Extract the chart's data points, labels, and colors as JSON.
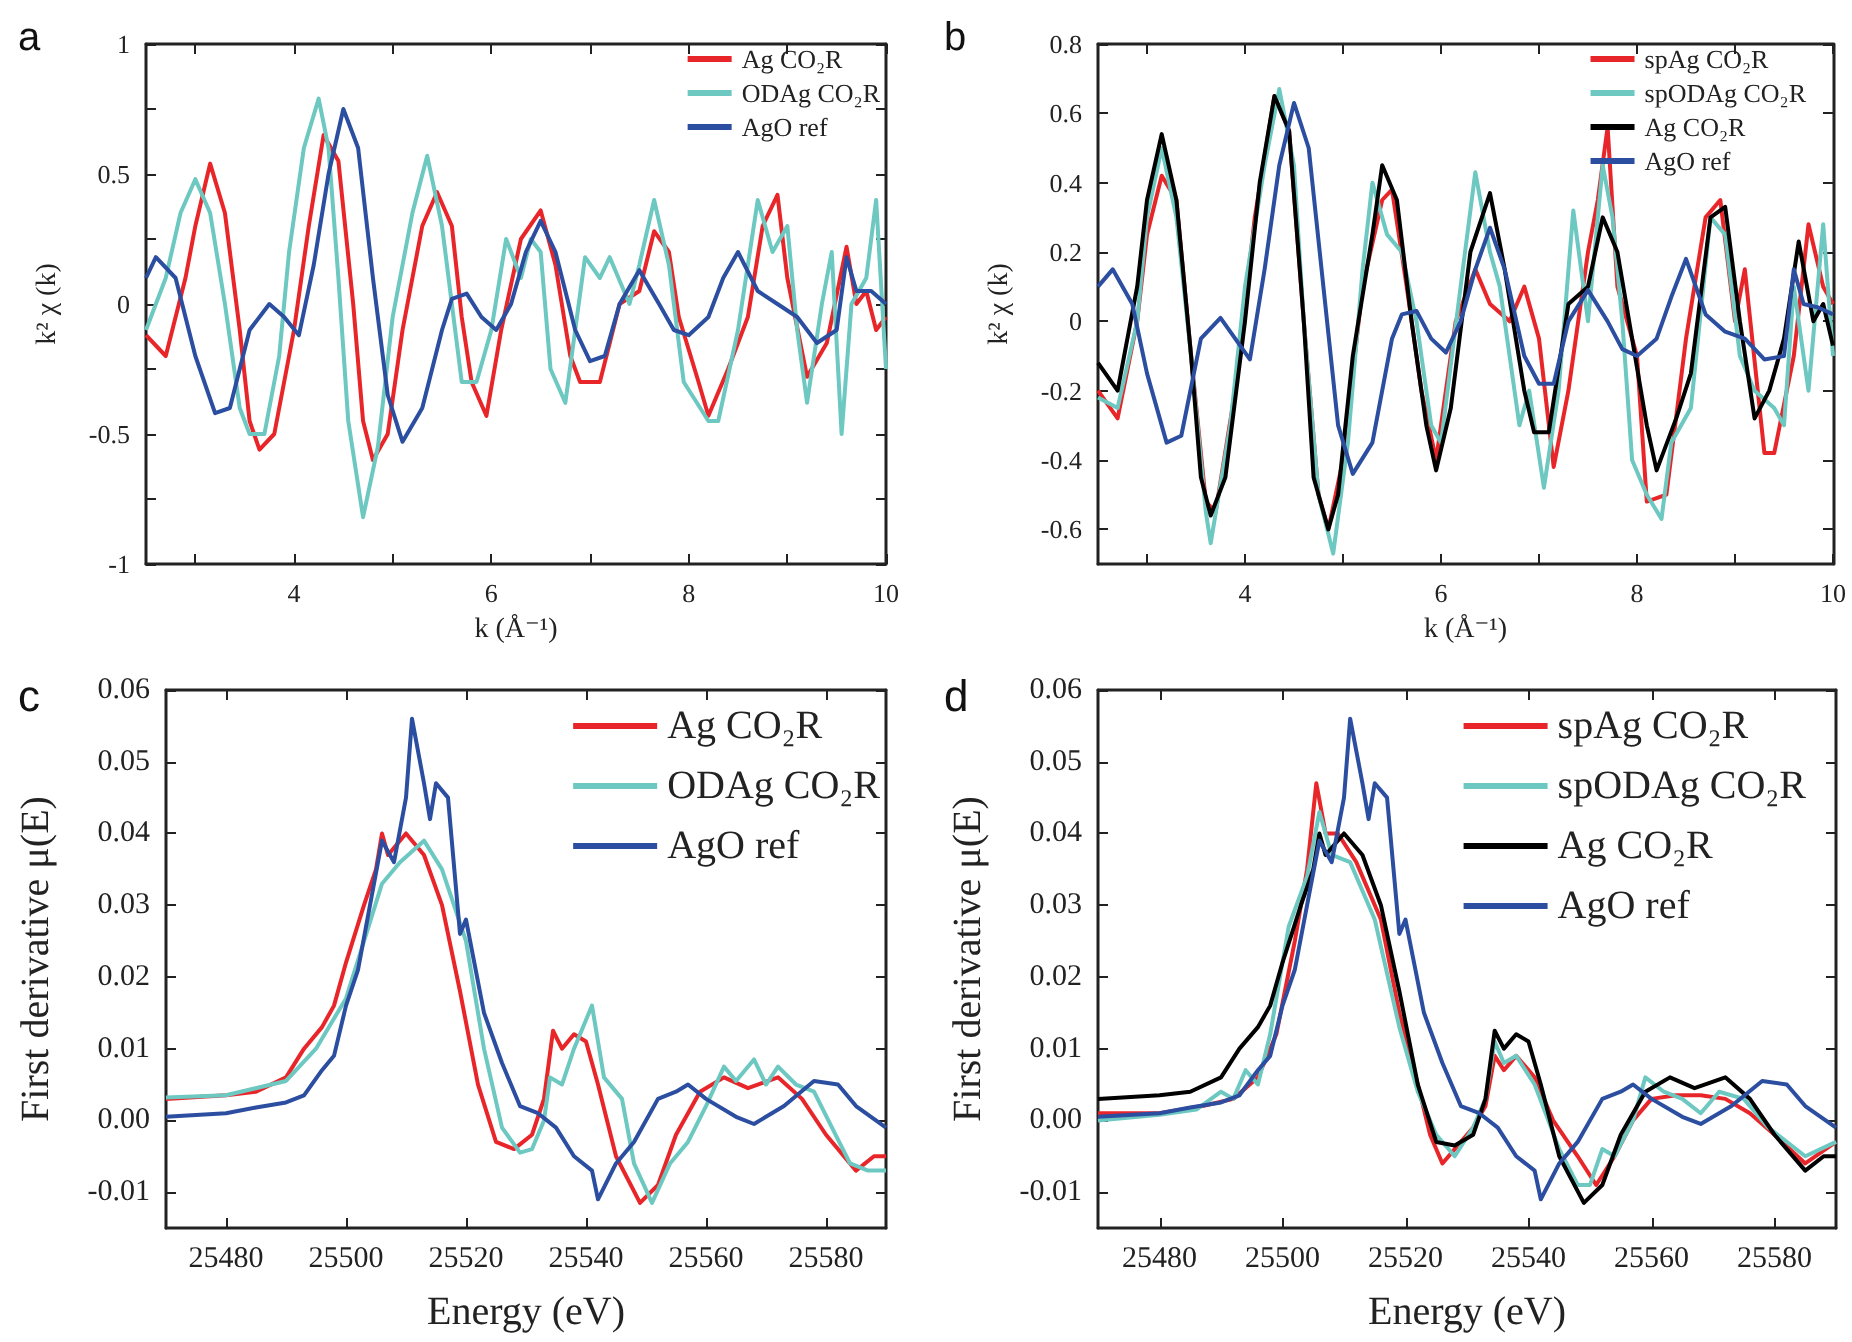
{
  "chart_data": [
    {
      "type": "line",
      "title": "a",
      "xlabel": "k (Å⁻¹)",
      "ylabel": "k² χ (k)",
      "legend": "top right",
      "xlim": [
        2.5,
        10
      ],
      "xticks": [
        {
          "value": 3,
          "label": null
        },
        4,
        {
          "value": 5,
          "label": null
        },
        6,
        {
          "value": 7,
          "label": null
        },
        8,
        {
          "value": 9,
          "label": null
        },
        10
      ],
      "ylim": [
        -1,
        1
      ],
      "yticks": [
        -1,
        {
          "value": -0.75,
          "label": null
        },
        -0.5,
        {
          "value": -0.25,
          "label": null
        },
        0,
        {
          "value": 0.25,
          "label": null
        },
        0.5,
        {
          "value": 0.75,
          "label": null
        },
        1
      ],
      "series": [
        {
          "name": "Ag CO₂R",
          "color": "#e8262a",
          "x": [
            2.5,
            2.7,
            2.9,
            3.0,
            3.15,
            3.3,
            3.45,
            3.55,
            3.65,
            3.8,
            4.0,
            4.15,
            4.3,
            4.45,
            4.6,
            4.7,
            4.8,
            4.95,
            5.1,
            5.3,
            5.45,
            5.6,
            5.7,
            5.8,
            5.95,
            6.1,
            6.3,
            6.5,
            6.65,
            6.8,
            6.9,
            7.1,
            7.3,
            7.5,
            7.65,
            7.8,
            7.9,
            8.1,
            8.2,
            8.4,
            8.6,
            8.75,
            8.9,
            9.0,
            9.2,
            9.4,
            9.6,
            9.7,
            9.8,
            9.9,
            10
          ],
          "values": [
            -0.12,
            -0.2,
            0.1,
            0.3,
            0.54,
            0.35,
            -0.1,
            -0.45,
            -0.56,
            -0.5,
            -0.1,
            0.3,
            0.65,
            0.55,
            0.0,
            -0.45,
            -0.6,
            -0.5,
            -0.1,
            0.3,
            0.43,
            0.3,
            -0.05,
            -0.3,
            -0.43,
            -0.1,
            0.25,
            0.36,
            0.15,
            -0.2,
            -0.3,
            -0.3,
            0.0,
            0.05,
            0.28,
            0.2,
            -0.05,
            -0.3,
            -0.43,
            -0.25,
            -0.05,
            0.3,
            0.42,
            0.1,
            -0.28,
            -0.15,
            0.22,
            0.0,
            0.05,
            -0.1,
            -0.05
          ]
        },
        {
          "name": "ODAg CO₂R",
          "color": "#6cc8c0",
          "x": [
            2.5,
            2.7,
            2.85,
            3.0,
            3.15,
            3.3,
            3.45,
            3.55,
            3.7,
            3.85,
            3.95,
            4.1,
            4.25,
            4.35,
            4.45,
            4.55,
            4.7,
            4.85,
            5.0,
            5.2,
            5.35,
            5.5,
            5.6,
            5.7,
            5.85,
            6.0,
            6.15,
            6.3,
            6.4,
            6.5,
            6.6,
            6.75,
            6.85,
            6.95,
            7.1,
            7.2,
            7.4,
            7.5,
            7.65,
            7.8,
            7.95,
            8.2,
            8.3,
            8.5,
            8.7,
            8.85,
            9.0,
            9.1,
            9.2,
            9.35,
            9.45,
            9.55,
            9.65,
            9.8,
            9.9,
            10
          ],
          "values": [
            -0.1,
            0.1,
            0.35,
            0.48,
            0.35,
            0.0,
            -0.4,
            -0.5,
            -0.5,
            -0.2,
            0.2,
            0.6,
            0.79,
            0.6,
            0.1,
            -0.45,
            -0.82,
            -0.55,
            -0.05,
            0.35,
            0.57,
            0.3,
            0.0,
            -0.3,
            -0.3,
            -0.1,
            0.25,
            0.1,
            0.25,
            0.2,
            -0.25,
            -0.38,
            -0.1,
            0.18,
            0.1,
            0.18,
            0.0,
            0.15,
            0.4,
            0.15,
            -0.3,
            -0.45,
            -0.45,
            -0.1,
            0.4,
            0.2,
            0.3,
            -0.1,
            -0.38,
            0.0,
            0.2,
            -0.5,
            0.0,
            0.1,
            0.4,
            -0.25
          ]
        },
        {
          "name": "AgO ref",
          "color": "#2c4ea0",
          "x": [
            2.5,
            2.6,
            2.8,
            3.0,
            3.2,
            3.35,
            3.55,
            3.75,
            3.9,
            4.05,
            4.2,
            4.35,
            4.5,
            4.65,
            4.8,
            4.95,
            5.1,
            5.3,
            5.5,
            5.6,
            5.75,
            5.9,
            6.05,
            6.2,
            6.35,
            6.5,
            6.65,
            6.85,
            7.0,
            7.15,
            7.3,
            7.5,
            7.7,
            7.85,
            8.0,
            8.2,
            8.35,
            8.5,
            8.7,
            8.9,
            9.1,
            9.3,
            9.5,
            9.6,
            9.7,
            9.85,
            10
          ],
          "values": [
            0.1,
            0.18,
            0.1,
            -0.2,
            -0.42,
            -0.4,
            -0.1,
            0.0,
            -0.05,
            -0.12,
            0.15,
            0.5,
            0.75,
            0.6,
            0.1,
            -0.35,
            -0.53,
            -0.4,
            -0.1,
            0.02,
            0.04,
            -0.05,
            -0.1,
            0.0,
            0.2,
            0.32,
            0.2,
            -0.1,
            -0.22,
            -0.2,
            0.0,
            0.13,
            0.0,
            -0.1,
            -0.12,
            -0.05,
            0.1,
            0.2,
            0.05,
            0.0,
            -0.05,
            -0.15,
            -0.1,
            0.18,
            0.05,
            0.05,
            0.0
          ]
        }
      ]
    },
    {
      "type": "line",
      "title": "b",
      "xlabel": "k (Å⁻¹)",
      "ylabel": "k² χ (k)",
      "legend": "top right",
      "xlim": [
        2.5,
        10
      ],
      "xticks": [
        {
          "value": 3,
          "label": null
        },
        4,
        {
          "value": 5,
          "label": null
        },
        6,
        {
          "value": 7,
          "label": null
        },
        8,
        {
          "value": 9,
          "label": null
        },
        10
      ],
      "ylim": [
        -0.7,
        0.8
      ],
      "yticks": [
        -0.6,
        -0.4,
        -0.2,
        0,
        0.2,
        0.4,
        0.6,
        0.8
      ],
      "series": [
        {
          "name": "spAg CO₂R",
          "color": "#e8262a",
          "x": [
            2.5,
            2.7,
            2.9,
            3.0,
            3.15,
            3.3,
            3.45,
            3.6,
            3.7,
            3.9,
            4.1,
            4.3,
            4.45,
            4.6,
            4.75,
            4.85,
            5.0,
            5.2,
            5.4,
            5.5,
            5.65,
            5.8,
            5.95,
            6.15,
            6.35,
            6.5,
            6.7,
            6.85,
            7.0,
            7.15,
            7.3,
            7.5,
            7.6,
            7.7,
            7.8,
            8.0,
            8.1,
            8.3,
            8.5,
            8.7,
            8.85,
            9.0,
            9.1,
            9.3,
            9.4,
            9.6,
            9.75,
            9.9,
            10
          ],
          "values": [
            -0.2,
            -0.28,
            0.0,
            0.25,
            0.42,
            0.35,
            -0.1,
            -0.52,
            -0.55,
            -0.2,
            0.3,
            0.65,
            0.55,
            0.0,
            -0.5,
            -0.6,
            -0.4,
            0.1,
            0.35,
            0.38,
            0.1,
            -0.2,
            -0.4,
            0.0,
            0.15,
            0.05,
            0.0,
            0.1,
            -0.05,
            -0.42,
            -0.2,
            0.2,
            0.35,
            0.56,
            0.1,
            -0.1,
            -0.52,
            -0.5,
            -0.05,
            0.3,
            0.35,
            0.0,
            0.15,
            -0.38,
            -0.38,
            -0.1,
            0.28,
            0.1,
            0.05
          ]
        },
        {
          "name": "spODAg CO₂R",
          "color": "#6cc8c0",
          "x": [
            2.5,
            2.7,
            2.9,
            3.0,
            3.15,
            3.3,
            3.45,
            3.6,
            3.65,
            3.85,
            4.0,
            4.2,
            4.35,
            4.5,
            4.6,
            4.75,
            4.9,
            5.05,
            5.2,
            5.3,
            5.45,
            5.6,
            5.75,
            5.9,
            6.0,
            6.2,
            6.35,
            6.5,
            6.6,
            6.8,
            6.9,
            7.05,
            7.2,
            7.35,
            7.5,
            7.65,
            7.75,
            7.85,
            7.95,
            8.1,
            8.25,
            8.35,
            8.55,
            8.75,
            8.9,
            9.05,
            9.2,
            9.4,
            9.5,
            9.6,
            9.75,
            9.9,
            10
          ],
          "values": [
            -0.22,
            -0.25,
            0.0,
            0.3,
            0.5,
            0.3,
            -0.1,
            -0.55,
            -0.64,
            -0.3,
            0.1,
            0.45,
            0.67,
            0.45,
            0.0,
            -0.5,
            -0.67,
            -0.35,
            0.15,
            0.4,
            0.25,
            0.2,
            0.0,
            -0.3,
            -0.35,
            0.1,
            0.43,
            0.2,
            0.1,
            -0.3,
            -0.2,
            -0.48,
            -0.2,
            0.32,
            0.0,
            0.45,
            0.3,
            0.0,
            -0.4,
            -0.5,
            -0.57,
            -0.35,
            -0.25,
            0.3,
            0.25,
            -0.1,
            -0.2,
            -0.25,
            -0.3,
            0.1,
            -0.2,
            0.28,
            -0.1
          ]
        },
        {
          "name": "Ag CO₂R",
          "color": "#000000",
          "x": [
            2.5,
            2.7,
            2.9,
            3.0,
            3.15,
            3.3,
            3.45,
            3.55,
            3.65,
            3.8,
            4.0,
            4.15,
            4.3,
            4.45,
            4.6,
            4.7,
            4.85,
            4.95,
            5.1,
            5.3,
            5.4,
            5.55,
            5.7,
            5.85,
            5.95,
            6.1,
            6.3,
            6.5,
            6.65,
            6.85,
            6.95,
            7.1,
            7.3,
            7.5,
            7.65,
            7.8,
            7.95,
            8.1,
            8.2,
            8.4,
            8.55,
            8.75,
            8.9,
            9.05,
            9.2,
            9.35,
            9.5,
            9.65,
            9.8,
            9.9,
            10
          ],
          "values": [
            -0.12,
            -0.2,
            0.1,
            0.35,
            0.54,
            0.35,
            -0.1,
            -0.45,
            -0.56,
            -0.45,
            0.0,
            0.4,
            0.65,
            0.55,
            0.0,
            -0.45,
            -0.6,
            -0.5,
            -0.1,
            0.25,
            0.45,
            0.35,
            0.0,
            -0.3,
            -0.43,
            -0.25,
            0.2,
            0.37,
            0.15,
            -0.2,
            -0.32,
            -0.32,
            0.05,
            0.1,
            0.3,
            0.2,
            -0.05,
            -0.3,
            -0.43,
            -0.28,
            -0.15,
            0.3,
            0.33,
            0.0,
            -0.28,
            -0.2,
            -0.05,
            0.23,
            0.0,
            0.05,
            -0.07
          ]
        },
        {
          "name": "AgO ref",
          "color": "#2c4ea0",
          "x": [
            2.5,
            2.65,
            2.85,
            3.0,
            3.2,
            3.35,
            3.55,
            3.75,
            3.9,
            4.05,
            4.2,
            4.35,
            4.5,
            4.65,
            4.8,
            4.95,
            5.1,
            5.3,
            5.5,
            5.6,
            5.75,
            5.9,
            6.05,
            6.2,
            6.35,
            6.5,
            6.65,
            6.85,
            7.0,
            7.15,
            7.3,
            7.5,
            7.7,
            7.85,
            8.0,
            8.2,
            8.35,
            8.5,
            8.7,
            8.9,
            9.1,
            9.3,
            9.5,
            9.6,
            9.7,
            9.85,
            10
          ],
          "values": [
            0.1,
            0.15,
            0.05,
            -0.15,
            -0.35,
            -0.33,
            -0.05,
            0.01,
            -0.05,
            -0.11,
            0.15,
            0.45,
            0.63,
            0.5,
            0.1,
            -0.3,
            -0.44,
            -0.35,
            -0.05,
            0.02,
            0.03,
            -0.05,
            -0.09,
            0.0,
            0.15,
            0.27,
            0.15,
            -0.1,
            -0.18,
            -0.18,
            0.0,
            0.09,
            0.0,
            -0.08,
            -0.1,
            -0.05,
            0.07,
            0.18,
            0.02,
            -0.03,
            -0.05,
            -0.11,
            -0.1,
            0.15,
            0.05,
            0.04,
            0.02
          ]
        }
      ]
    },
    {
      "type": "line",
      "title": "c",
      "xlabel": "Energy (eV)",
      "ylabel": "First derivative μ(E)",
      "legend": "top right",
      "xlim": [
        25470,
        25590
      ],
      "xticks": [
        25480,
        25500,
        25520,
        25540,
        25560,
        25580
      ],
      "ylim": [
        -0.015,
        0.06
      ],
      "yticks": [
        -0.01,
        {
          "value": 0,
          "label": "0.00"
        },
        0.01,
        0.02,
        0.03,
        0.04,
        0.05,
        0.06
      ],
      "series": [
        {
          "name": "Ag CO₂R",
          "color": "#e8262a",
          "x": [
            25470,
            25480,
            25485,
            25490,
            25493,
            25496,
            25498,
            25500,
            25503,
            25505,
            25506,
            25507,
            25510,
            25513,
            25516,
            25519,
            25522,
            25525,
            25528,
            25531,
            25533,
            25534.5,
            25536,
            25538,
            25540,
            25542,
            25545,
            25549,
            25552,
            25555,
            25559,
            25563,
            25567,
            25572,
            25576,
            25580,
            25585,
            25588,
            25590
          ],
          "values": [
            0.003,
            0.0035,
            0.004,
            0.006,
            0.01,
            0.013,
            0.016,
            0.022,
            0.03,
            0.035,
            0.04,
            0.037,
            0.04,
            0.037,
            0.03,
            0.018,
            0.005,
            -0.003,
            -0.004,
            -0.002,
            0.003,
            0.0125,
            0.01,
            0.012,
            0.011,
            0.005,
            -0.005,
            -0.0115,
            -0.009,
            -0.002,
            0.004,
            0.006,
            0.0045,
            0.006,
            0.003,
            -0.002,
            -0.007,
            -0.005,
            -0.005
          ]
        },
        {
          "name": "ODAg CO₂R",
          "color": "#6cc8c0",
          "x": [
            25470,
            25480,
            25490,
            25495,
            25500,
            25503,
            25506,
            25509,
            25513,
            25516,
            25520,
            25523,
            25526,
            25529,
            25531,
            25533,
            25534,
            25536,
            25538,
            25540,
            25541,
            25543,
            25546,
            25548,
            25551,
            25554,
            25557,
            25560,
            25563,
            25565,
            25568,
            25570,
            25572,
            25575,
            25578,
            25581,
            25584,
            25587,
            25590
          ],
          "values": [
            0.0032,
            0.0035,
            0.0055,
            0.01,
            0.017,
            0.025,
            0.033,
            0.036,
            0.039,
            0.035,
            0.025,
            0.01,
            -0.001,
            -0.0045,
            -0.004,
            0.0,
            0.006,
            0.005,
            0.01,
            0.014,
            0.016,
            0.006,
            0.003,
            -0.006,
            -0.0115,
            -0.006,
            -0.003,
            0.002,
            0.0075,
            0.0055,
            0.0085,
            0.005,
            0.0075,
            0.005,
            0.004,
            -0.001,
            -0.006,
            -0.007,
            -0.007
          ]
        },
        {
          "name": "AgO ref",
          "color": "#2c4ea0",
          "x": [
            25470,
            25480,
            25485,
            25490,
            25493,
            25496,
            25498,
            25500,
            25502,
            25504,
            25506,
            25508,
            25510,
            25511,
            25513,
            25514,
            25515,
            25517,
            25519,
            25520,
            25523,
            25526,
            25529,
            25532,
            25535,
            25538,
            25541,
            25542,
            25545,
            25548,
            25552,
            25555,
            25557,
            25560,
            25565,
            25568,
            25573,
            25578,
            25582,
            25585,
            25590
          ],
          "values": [
            0.0005,
            0.001,
            0.0018,
            0.0025,
            0.0035,
            0.007,
            0.009,
            0.016,
            0.021,
            0.03,
            0.039,
            0.036,
            0.045,
            0.056,
            0.047,
            0.042,
            0.047,
            0.045,
            0.026,
            0.028,
            0.015,
            0.008,
            0.002,
            0.001,
            -0.001,
            -0.005,
            -0.007,
            -0.011,
            -0.006,
            -0.003,
            0.003,
            0.004,
            0.005,
            0.003,
            0.0005,
            -0.0005,
            0.002,
            0.0055,
            0.005,
            0.002,
            -0.001
          ]
        }
      ]
    },
    {
      "type": "line",
      "title": "d",
      "xlabel": "Energy (eV)",
      "ylabel": "First derivative μ(E)",
      "legend": "top right",
      "xlim": [
        25470,
        25590
      ],
      "xticks": [
        25480,
        25500,
        25520,
        25540,
        25560,
        25580
      ],
      "ylim": [
        -0.015,
        0.06
      ],
      "yticks": [
        -0.01,
        {
          "value": 0,
          "label": "0.00"
        },
        0.01,
        0.02,
        0.03,
        0.04,
        0.05,
        0.06
      ],
      "series": [
        {
          "name": "spAg CO₂R",
          "color": "#e8262a",
          "x": [
            25470,
            25480,
            25487,
            25492,
            25496,
            25499,
            25502,
            25504,
            25505.5,
            25507,
            25509,
            25512,
            25516,
            25519,
            25522,
            25524,
            25526,
            25528,
            25531,
            25533,
            25534.5,
            25536,
            25538,
            25541,
            25544,
            25548,
            25551,
            25554,
            25557,
            25560,
            25564,
            25568,
            25572,
            25576,
            25580,
            25585,
            25590
          ],
          "values": [
            0.001,
            0.001,
            0.002,
            0.003,
            0.006,
            0.012,
            0.025,
            0.035,
            0.047,
            0.04,
            0.04,
            0.036,
            0.028,
            0.015,
            0.005,
            -0.002,
            -0.006,
            -0.004,
            -0.001,
            0.002,
            0.009,
            0.007,
            0.009,
            0.006,
            0.0,
            -0.005,
            -0.009,
            -0.005,
            0.0,
            0.003,
            0.0035,
            0.0035,
            0.003,
            0.001,
            -0.002,
            -0.006,
            -0.003
          ]
        },
        {
          "name": "spODAg CO₂R",
          "color": "#6cc8c0",
          "x": [
            25470,
            25480,
            25486,
            25490,
            25492,
            25494,
            25496,
            25498,
            25501,
            25504,
            25506,
            25508,
            25511,
            25515,
            25519,
            25522,
            25525,
            25528,
            25531,
            25533,
            25534.5,
            25536,
            25538,
            25541,
            25545,
            25548,
            25550,
            25552,
            25554,
            25557,
            25559,
            25562,
            25565,
            25568,
            25571,
            25575,
            25579,
            25585,
            25590
          ],
          "values": [
            0.0,
            0.0008,
            0.0015,
            0.004,
            0.003,
            0.007,
            0.005,
            0.012,
            0.027,
            0.034,
            0.043,
            0.037,
            0.036,
            0.028,
            0.013,
            0.004,
            -0.002,
            -0.005,
            -0.001,
            0.003,
            0.011,
            0.008,
            0.009,
            0.005,
            -0.004,
            -0.009,
            -0.009,
            -0.004,
            -0.005,
            0.0,
            0.006,
            0.004,
            0.003,
            0.001,
            0.004,
            0.003,
            -0.001,
            -0.005,
            -0.003
          ]
        },
        {
          "name": "Ag CO₂R",
          "color": "#000000",
          "x": [
            25470,
            25480,
            25485,
            25490,
            25493,
            25496,
            25498,
            25500,
            25503,
            25505,
            25506,
            25507,
            25510,
            25513,
            25516,
            25519,
            25522,
            25525,
            25528,
            25531,
            25533,
            25534.5,
            25536,
            25538,
            25540,
            25542,
            25545,
            25549,
            25552,
            25555,
            25559,
            25563,
            25567,
            25572,
            25576,
            25580,
            25585,
            25588,
            25590
          ],
          "values": [
            0.003,
            0.0035,
            0.004,
            0.006,
            0.01,
            0.013,
            0.016,
            0.022,
            0.03,
            0.035,
            0.04,
            0.037,
            0.04,
            0.037,
            0.03,
            0.018,
            0.005,
            -0.003,
            -0.0035,
            -0.002,
            0.003,
            0.0125,
            0.01,
            0.012,
            0.011,
            0.005,
            -0.005,
            -0.0115,
            -0.009,
            -0.002,
            0.004,
            0.006,
            0.0045,
            0.006,
            0.003,
            -0.002,
            -0.007,
            -0.005,
            -0.005
          ]
        },
        {
          "name": "AgO ref",
          "color": "#2c4ea0",
          "x": [
            25470,
            25480,
            25485,
            25490,
            25493,
            25496,
            25498,
            25500,
            25502,
            25504,
            25506,
            25508,
            25510,
            25511,
            25513,
            25514,
            25515,
            25517,
            25519,
            25520,
            25523,
            25526,
            25529,
            25532,
            25535,
            25538,
            25541,
            25542,
            25545,
            25548,
            25552,
            25555,
            25557,
            25560,
            25565,
            25568,
            25573,
            25578,
            25582,
            25585,
            25590
          ],
          "values": [
            0.0005,
            0.001,
            0.0018,
            0.0025,
            0.0035,
            0.007,
            0.009,
            0.016,
            0.021,
            0.03,
            0.039,
            0.036,
            0.045,
            0.056,
            0.047,
            0.042,
            0.047,
            0.045,
            0.026,
            0.028,
            0.015,
            0.008,
            0.002,
            0.001,
            -0.001,
            -0.005,
            -0.007,
            -0.011,
            -0.006,
            -0.003,
            0.003,
            0.004,
            0.005,
            0.003,
            0.0005,
            -0.0005,
            0.002,
            0.0055,
            0.005,
            0.002,
            -0.001
          ]
        }
      ]
    }
  ]
}
